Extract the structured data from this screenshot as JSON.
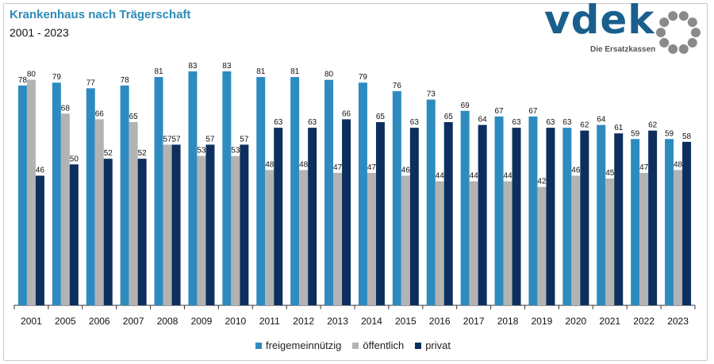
{
  "header": {
    "title": "Krankenhaus nach Trägerschaft",
    "subtitle": "2001 - 2023"
  },
  "logo": {
    "text": "vdek",
    "sub": "Die Ersatzkassen",
    "ring_color": "#8a8a8a"
  },
  "colors": {
    "freigemeinnuetzig": "#2e8bc0",
    "oeffentlich": "#b3b3b3",
    "privat": "#0d2f5e"
  },
  "chart_data": {
    "type": "bar",
    "title": "Krankenhaus nach Trägerschaft",
    "subtitle": "2001 - 2023",
    "categories": [
      "2001",
      "2005",
      "2006",
      "2007",
      "2008",
      "2009",
      "2010",
      "2011",
      "2012",
      "2013",
      "2014",
      "2015",
      "2016",
      "2017",
      "2018",
      "2019",
      "2020",
      "2021",
      "2022",
      "2023"
    ],
    "series": [
      {
        "name": "freigemeinnützig",
        "values": [
          78,
          79,
          77,
          78,
          81,
          83,
          83,
          81,
          81,
          80,
          79,
          76,
          73,
          69,
          67,
          67,
          63,
          64,
          59,
          59
        ]
      },
      {
        "name": "öffentlich",
        "values": [
          80,
          68,
          66,
          65,
          57,
          53,
          53,
          48,
          48,
          47,
          47,
          46,
          44,
          44,
          44,
          42,
          46,
          45,
          47,
          48
        ]
      },
      {
        "name": "privat",
        "values": [
          46,
          50,
          52,
          52,
          57,
          57,
          57,
          63,
          63,
          66,
          65,
          63,
          65,
          64,
          63,
          63,
          62,
          61,
          62,
          58
        ]
      }
    ],
    "ylim": [
      0,
      83
    ],
    "legend_position": "bottom",
    "grid": false
  }
}
